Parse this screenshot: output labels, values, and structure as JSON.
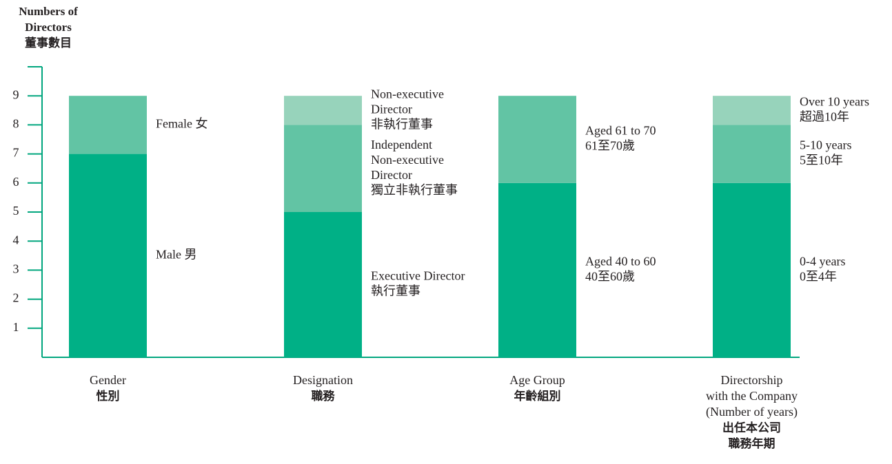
{
  "chart_data": {
    "type": "stacked-bar",
    "ylabel": [
      "Numbers of",
      "Directors",
      "董事數目"
    ],
    "ylim": [
      0,
      10
    ],
    "yticks": [
      1,
      2,
      3,
      4,
      5,
      6,
      7,
      8,
      9
    ],
    "categories": [
      [
        "Gender",
        "性別"
      ],
      [
        "Designation",
        "職務"
      ],
      [
        "Age Group",
        "年齡組別"
      ],
      [
        "Directorship",
        "with the Company",
        "(Number of years)",
        "出任本公司",
        "職務年期"
      ]
    ],
    "stacks": [
      {
        "segments": [
          {
            "value": 7,
            "color": "#00b086",
            "label": [
              "Male 男"
            ]
          },
          {
            "value": 2,
            "color": "#62c4a4",
            "label": [
              "Female 女"
            ]
          }
        ]
      },
      {
        "segments": [
          {
            "value": 5,
            "color": "#00b086",
            "label": [
              "Executive Director",
              "執行董事"
            ]
          },
          {
            "value": 3,
            "color": "#62c4a4",
            "label": [
              "Independent",
              "Non-executive",
              "Director",
              "獨立非執行董事"
            ]
          },
          {
            "value": 1,
            "color": "#97d3bb",
            "label": [
              "Non-executive",
              "Director",
              "非執行董事"
            ]
          }
        ]
      },
      {
        "segments": [
          {
            "value": 6,
            "color": "#00b086",
            "label": [
              "Aged 40 to 60",
              "40至60歲"
            ]
          },
          {
            "value": 3,
            "color": "#62c4a4",
            "label": [
              "Aged 61 to 70",
              "61至70歲"
            ]
          }
        ]
      },
      {
        "segments": [
          {
            "value": 6,
            "color": "#00b086",
            "label": [
              "0-4 years",
              "0至4年"
            ]
          },
          {
            "value": 2,
            "color": "#62c4a4",
            "label": [
              "5-10 years",
              "5至10年"
            ]
          },
          {
            "value": 1,
            "color": "#97d3bb",
            "label": [
              "Over 10 years",
              "超過10年"
            ]
          }
        ]
      }
    ],
    "axis_color": "#00a67e"
  }
}
